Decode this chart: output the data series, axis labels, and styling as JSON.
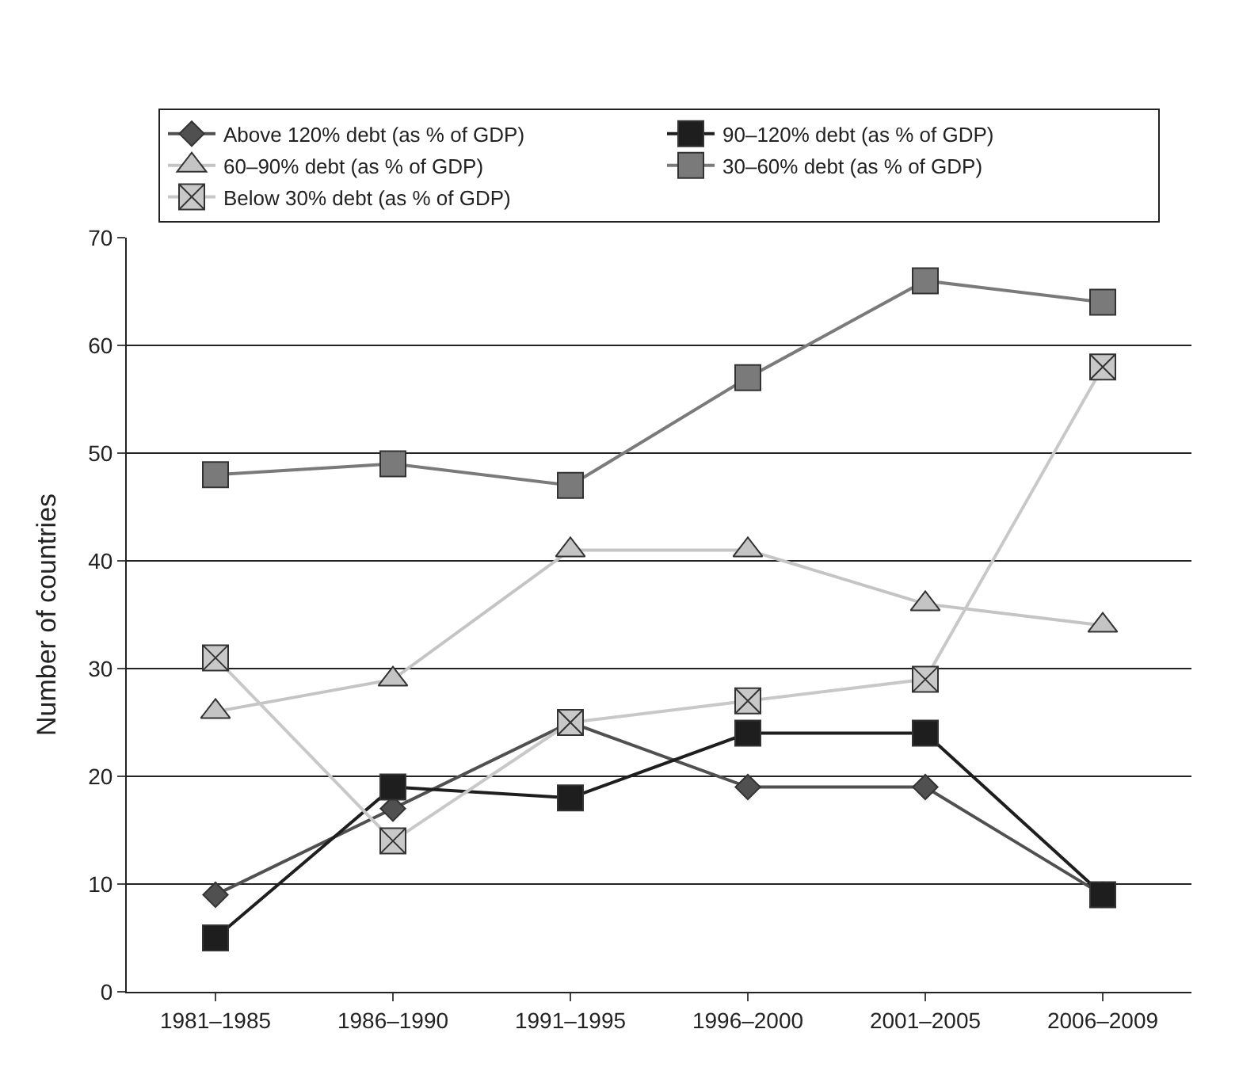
{
  "chart_data": {
    "type": "line",
    "ylabel": "Number of countries",
    "categories": [
      "1981–1985",
      "1986–1990",
      "1991–1995",
      "1996–2000",
      "2001–2005",
      "2006–2009"
    ],
    "series": [
      {
        "name": "Above 120% debt (as % of GDP)",
        "color": "#505050",
        "marker": "diamond",
        "values": [
          9,
          17,
          25,
          19,
          19,
          9
        ]
      },
      {
        "name": "90–120% debt (as % of GDP)",
        "color": "#1e1e1e",
        "marker": "square",
        "values": [
          5,
          19,
          18,
          24,
          24,
          9
        ]
      },
      {
        "name": "60–90% debt (as % of GDP)",
        "color": "#c4c4c4",
        "marker": "triangle",
        "values": [
          26,
          29,
          41,
          41,
          36,
          34
        ]
      },
      {
        "name": "30–60% debt (as % of GDP)",
        "color": "#7a7a7a",
        "marker": "square",
        "values": [
          48,
          49,
          47,
          57,
          66,
          64
        ]
      },
      {
        "name": "Below 30% debt (as % of GDP)",
        "color": "#c8c8c8",
        "marker": "cross",
        "values": [
          31,
          14,
          25,
          27,
          29,
          58
        ]
      }
    ],
    "ylim": [
      0,
      70
    ],
    "yticks": [
      0,
      10,
      20,
      30,
      40,
      50,
      60,
      70
    ],
    "grid": "y",
    "legend": "top",
    "line_style": "solid"
  }
}
